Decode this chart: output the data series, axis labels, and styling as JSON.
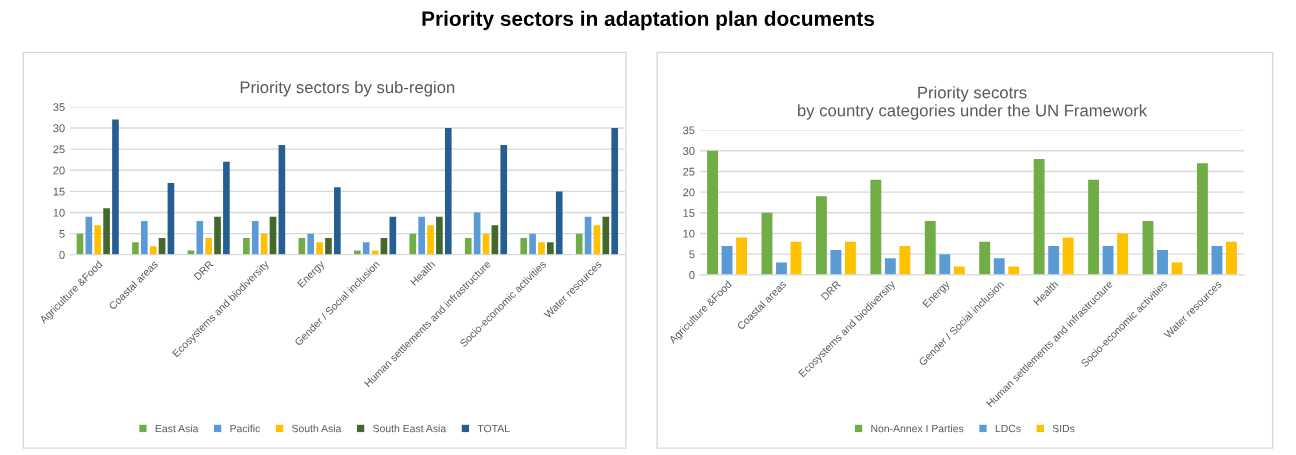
{
  "chart_data": [
    {
      "type": "other",
      "title": "Priority sectors in adaptation plan documents"
    },
    {
      "type": "bar",
      "title": "Priority sectors by sub-region",
      "categories": [
        "Agriculture &Food",
        "Coastal areas",
        "DRR",
        "Ecosystems and biodiversity",
        "Energy",
        "Gender / Social inclusion",
        "Health",
        "Human settlements and infrastructure",
        "Socio-economic activities",
        "Water resources"
      ],
      "series": [
        {
          "name": "East Asia",
          "color": "#70ad47",
          "values": [
            5,
            3,
            1,
            4,
            4,
            1,
            5,
            4,
            4,
            5
          ]
        },
        {
          "name": "Pacific",
          "color": "#5b9bd5",
          "values": [
            9,
            8,
            8,
            8,
            5,
            3,
            9,
            10,
            5,
            9
          ]
        },
        {
          "name": "South Asia",
          "color": "#ffc000",
          "values": [
            7,
            2,
            4,
            5,
            3,
            1,
            7,
            5,
            3,
            7
          ]
        },
        {
          "name": "South East Asia",
          "color": "#43682b",
          "values": [
            11,
            4,
            9,
            9,
            4,
            4,
            9,
            7,
            3,
            9
          ]
        },
        {
          "name": "TOTAL",
          "color": "#255e91",
          "values": [
            32,
            17,
            22,
            26,
            16,
            9,
            30,
            26,
            15,
            30
          ]
        }
      ],
      "ylim": [
        0,
        35
      ],
      "yticks": [
        0,
        5,
        10,
        15,
        20,
        25,
        30,
        35
      ],
      "grid": "y",
      "legend": "bottom"
    },
    {
      "type": "bar",
      "title": "Priority secotrs\nby country categories under the UN Framework",
      "categories": [
        "Agriculture &Food",
        "Coastal areas",
        "DRR",
        "Ecosystems and biodiversity",
        "Energy",
        "Gender / Social inclusion",
        "Health",
        "Human settlements and infrastructure",
        "Socio-economic activities",
        "Water resources"
      ],
      "series": [
        {
          "name": "Non-Annex I Parties",
          "color": "#70ad47",
          "values": [
            30,
            15,
            19,
            23,
            13,
            8,
            28,
            23,
            13,
            27
          ]
        },
        {
          "name": "LDCs",
          "color": "#5b9bd5",
          "values": [
            7,
            3,
            6,
            4,
            5,
            4,
            7,
            7,
            6,
            7
          ]
        },
        {
          "name": "SIDs",
          "color": "#ffc000",
          "values": [
            9,
            8,
            8,
            7,
            2,
            2,
            9,
            10,
            3,
            8
          ]
        }
      ],
      "ylim": [
        0,
        35
      ],
      "yticks": [
        0,
        5,
        10,
        15,
        20,
        25,
        30,
        35
      ],
      "grid": "y",
      "legend": "bottom"
    }
  ]
}
